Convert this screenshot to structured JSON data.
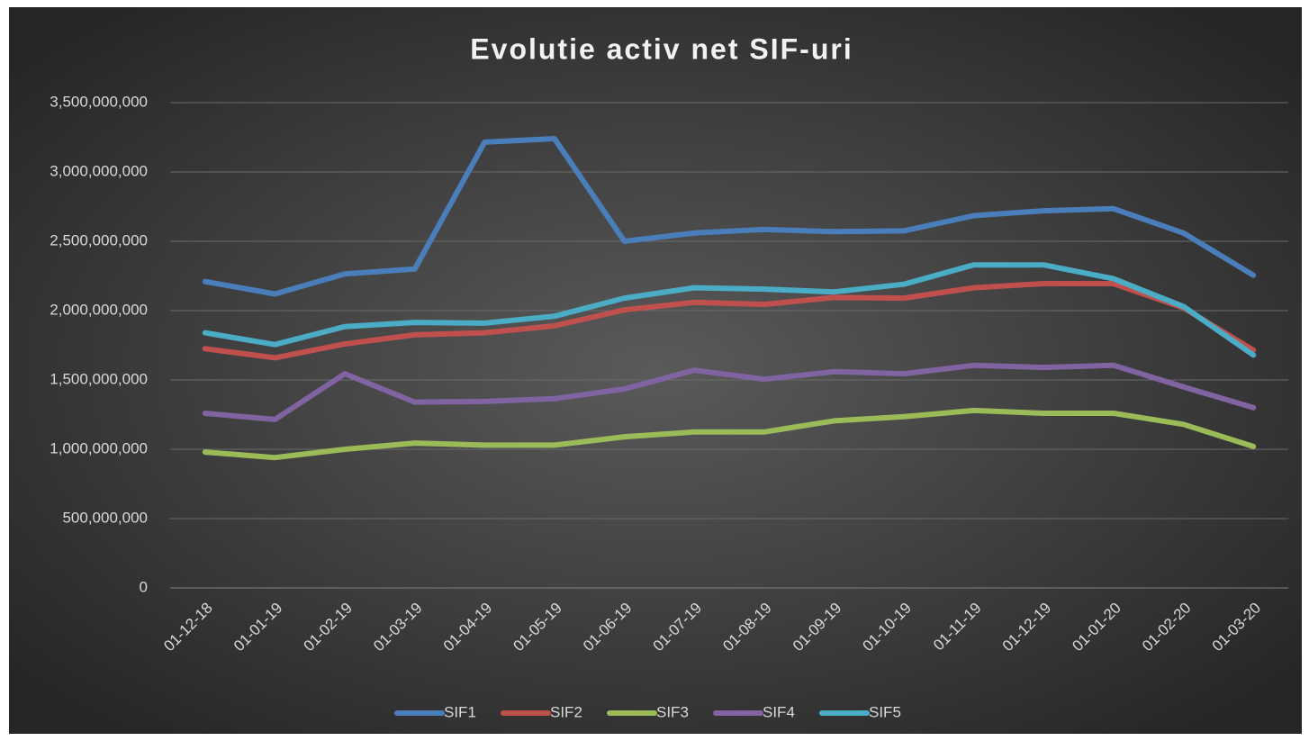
{
  "chart_data": {
    "type": "line",
    "title": "Evolutie activ net SIF-uri",
    "categories": [
      "01-12-18",
      "01-01-19",
      "01-02-19",
      "01-03-19",
      "01-04-19",
      "01-05-19",
      "01-06-19",
      "01-07-19",
      "01-08-19",
      "01-09-19",
      "01-10-19",
      "01-11-19",
      "01-12-19",
      "01-01-20",
      "01-02-20",
      "01-03-20"
    ],
    "series": [
      {
        "name": "SIF1",
        "color": "#4a7ebb",
        "values": [
          2210000000,
          2120000000,
          2265000000,
          2300000000,
          3215000000,
          3240000000,
          2500000000,
          2560000000,
          2585000000,
          2570000000,
          2575000000,
          2685000000,
          2720000000,
          2735000000,
          2560000000,
          2255000000
        ]
      },
      {
        "name": "SIF2",
        "color": "#c0504d",
        "values": [
          1725000000,
          1660000000,
          1760000000,
          1825000000,
          1840000000,
          1890000000,
          2005000000,
          2060000000,
          2045000000,
          2095000000,
          2090000000,
          2165000000,
          2195000000,
          2195000000,
          2020000000,
          1715000000
        ]
      },
      {
        "name": "SIF3",
        "color": "#9bbb59",
        "values": [
          980000000,
          940000000,
          1000000000,
          1045000000,
          1030000000,
          1030000000,
          1090000000,
          1125000000,
          1125000000,
          1205000000,
          1235000000,
          1280000000,
          1260000000,
          1260000000,
          1180000000,
          1020000000
        ]
      },
      {
        "name": "SIF4",
        "color": "#8064a2",
        "values": [
          1260000000,
          1215000000,
          1545000000,
          1340000000,
          1345000000,
          1365000000,
          1435000000,
          1570000000,
          1505000000,
          1560000000,
          1545000000,
          1605000000,
          1590000000,
          1605000000,
          1450000000,
          1300000000
        ]
      },
      {
        "name": "SIF5",
        "color": "#4bacc6",
        "values": [
          1840000000,
          1755000000,
          1885000000,
          1915000000,
          1910000000,
          1960000000,
          2090000000,
          2165000000,
          2155000000,
          2135000000,
          2190000000,
          2330000000,
          2330000000,
          2230000000,
          2030000000,
          1680000000
        ]
      }
    ],
    "ylim": [
      0,
      3500000000
    ],
    "yticks": [
      0,
      {
        "value": 500000000,
        "label": "500,000,000"
      },
      {
        "value": 1000000000,
        "label": "1,000,000,000"
      },
      {
        "value": 1500000000,
        "label": "1,500,000,000"
      },
      {
        "value": 2000000000,
        "label": "2,000,000,000"
      },
      {
        "value": 2500000000,
        "label": "2,500,000,000"
      },
      {
        "value": 3000000000,
        "label": "3,000,000,000"
      },
      {
        "value": 3500000000,
        "label": "3,500,000,000"
      }
    ],
    "grid": true,
    "legend": "bottom"
  }
}
